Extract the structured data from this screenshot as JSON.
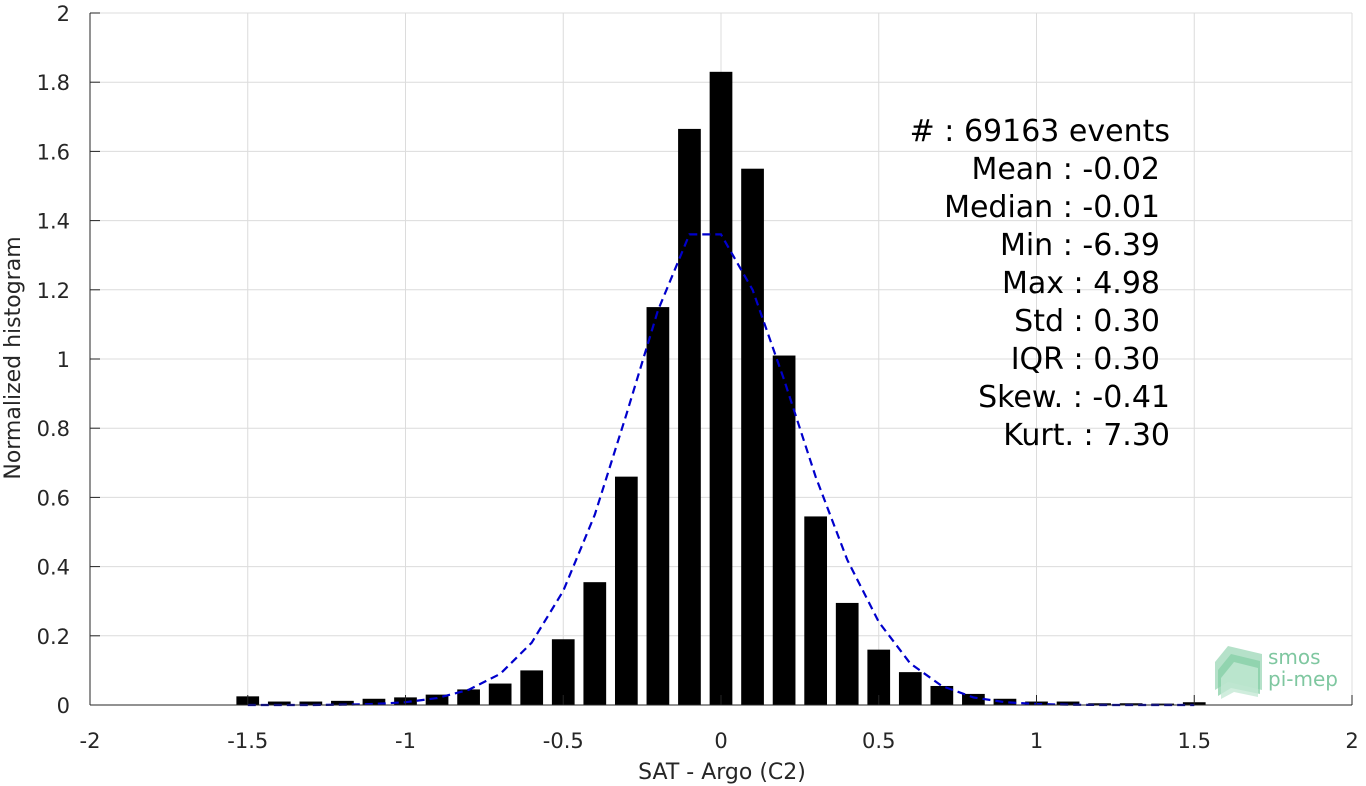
{
  "chart_data": {
    "type": "bar",
    "xlabel": "SAT - Argo (C2)",
    "ylabel": "Normalized histogram",
    "xlim": [
      -2,
      2
    ],
    "ylim": [
      0,
      2
    ],
    "xticks": [
      -2,
      -1.5,
      -1,
      -0.5,
      0,
      0.5,
      1,
      1.5,
      2
    ],
    "xtick_labels": [
      "-2",
      "-1.5",
      "-1",
      "-0.5",
      "0",
      "0.5",
      "1",
      "1.5",
      "2"
    ],
    "yticks": [
      0,
      0.2,
      0.4,
      0.6,
      0.8,
      1,
      1.2,
      1.4,
      1.6,
      1.8,
      2
    ],
    "ytick_labels": [
      "0",
      "0.2",
      "0.4",
      "0.6",
      "0.8",
      "1",
      "1.2",
      "1.4",
      "1.6",
      "1.8",
      "2"
    ],
    "grid": true,
    "bin_width": 0.1,
    "bar_color": "#000000",
    "series": [
      {
        "type": "bar",
        "x": [
          -1.5,
          -1.4,
          -1.3,
          -1.2,
          -1.1,
          -1.0,
          -0.9,
          -0.8,
          -0.7,
          -0.6,
          -0.5,
          -0.4,
          -0.3,
          -0.2,
          -0.1,
          0.0,
          0.1,
          0.2,
          0.3,
          0.4,
          0.5,
          0.6,
          0.7,
          0.8,
          0.9,
          1.0,
          1.1,
          1.2,
          1.3,
          1.4,
          1.5
        ],
        "values": [
          0.025,
          0.01,
          0.01,
          0.012,
          0.018,
          0.022,
          0.03,
          0.045,
          0.062,
          0.1,
          0.19,
          0.355,
          0.66,
          1.15,
          1.665,
          1.83,
          1.55,
          1.01,
          0.545,
          0.295,
          0.16,
          0.095,
          0.055,
          0.032,
          0.018,
          0.01,
          0.01,
          0.005,
          0.005,
          0.004,
          0.008
        ]
      },
      {
        "type": "line",
        "style": "dashed",
        "color": "#0000cc",
        "x": [
          -1.5,
          -1.4,
          -1.3,
          -1.2,
          -1.1,
          -1.0,
          -0.9,
          -0.8,
          -0.7,
          -0.6,
          -0.5,
          -0.4,
          -0.3,
          -0.2,
          -0.1,
          0.0,
          0.1,
          0.2,
          0.3,
          0.4,
          0.5,
          0.6,
          0.7,
          0.8,
          0.9,
          1.0,
          1.1,
          1.2,
          1.3,
          1.4,
          1.5
        ],
        "values": [
          0.0,
          0.0,
          0.0,
          0.001,
          0.003,
          0.008,
          0.02,
          0.044,
          0.09,
          0.18,
          0.33,
          0.55,
          0.84,
          1.14,
          1.36,
          1.36,
          1.2,
          0.94,
          0.66,
          0.42,
          0.24,
          0.12,
          0.055,
          0.022,
          0.008,
          0.003,
          0.001,
          0.0,
          0.0,
          0.0,
          0.0
        ]
      }
    ],
    "annotation": [
      "#  : 69163 events",
      "Mean : -0.02",
      "Median : -0.01",
      "Min : -6.39",
      "Max : 4.98",
      "Std : 0.30",
      "IQR : 0.30",
      "Skew. : -0.41",
      "Kurt. : 7.30"
    ]
  },
  "logo": {
    "line1": "smos",
    "line2": "pi-mep"
  }
}
